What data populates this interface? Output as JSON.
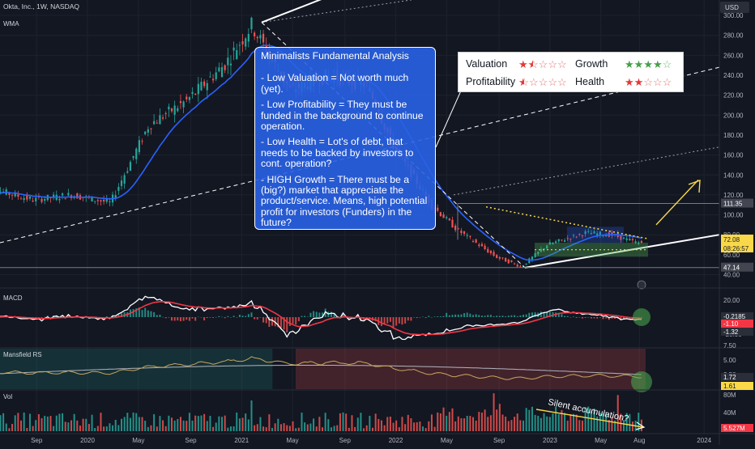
{
  "header": {
    "symbol_line": "Okta, Inc., 1W, NASDAQ",
    "indicator": "WMA",
    "currency": "USD"
  },
  "price_axis": {
    "ticks": [
      "300.00",
      "280.00",
      "260.00",
      "240.00",
      "220.00",
      "200.00",
      "180.00",
      "160.00",
      "140.00",
      "120.00",
      "100.00",
      "80.00",
      "60.00",
      "40.00"
    ],
    "labels": [
      {
        "text": "111.35",
        "color": "#434651"
      },
      {
        "text": "74.75",
        "color": "#2962ff"
      },
      {
        "text": "72.08",
        "color": "#f9d949"
      },
      {
        "text": "08:26:57",
        "color": "#f9d949"
      },
      {
        "text": "47.14",
        "color": "#434651"
      }
    ]
  },
  "time_axis": {
    "labels": [
      "Sep",
      "2020",
      "May",
      "Sep",
      "2021",
      "May",
      "Sep",
      "2022",
      "May",
      "Sep",
      "2023",
      "May",
      "Aug",
      "2024"
    ]
  },
  "analysis": {
    "title": "Minimalists Fundamental Analysis",
    "points": [
      "- Low Valuation = Not worth much (yet).",
      "- Low Profitability = They must be funded in the background to continue operation.",
      "- Low Health = Lot's of debt, that needs to be backed by investors to cont. operation?",
      "- HIGH Growth = There must be a (big?)  market that appreciate the product/service. Means, high potential profit for investors (Funders) in the future?"
    ]
  },
  "ratings": [
    {
      "label": "Valuation",
      "stars": 1.5,
      "color": "red"
    },
    {
      "label": "Growth",
      "stars": 4,
      "color": "green"
    },
    {
      "label": "Profitability",
      "stars": 0.5,
      "color": "red"
    },
    {
      "label": "Health",
      "stars": 2,
      "color": "red"
    }
  ],
  "panes": {
    "macd": {
      "name": "MACD",
      "ticks": [
        "20.00",
        "-20.00"
      ],
      "labels": [
        "-0.2185",
        "-1.10",
        "-1.32"
      ]
    },
    "mansfield": {
      "name": "Mansfield RS",
      "ticks": [
        "7.50",
        "5.00",
        "2.50"
      ],
      "labels": [
        "1.72",
        "1.61"
      ]
    },
    "vol": {
      "name": "Vol",
      "ticks": [
        "80M",
        "40M"
      ],
      "labels": [
        "5.527M"
      ]
    }
  },
  "annotations": {
    "volume_note": "Silent accumulation?"
  },
  "colors": {
    "up": "#26a69a",
    "down": "#ef5350",
    "wma": "#2962ff",
    "macd": "#ffffff",
    "signal": "#f23645",
    "rs": "#c8a75a",
    "arrow": "#f9d949"
  },
  "chart_data": {
    "type": "candlestick",
    "title": "Okta, Inc., 1W, NASDAQ",
    "ylim": [
      30,
      310
    ],
    "x_range": [
      "2019-06",
      "2024-04"
    ],
    "approx_close": [
      [
        "2019-06",
        125
      ],
      [
        "2019-09",
        115
      ],
      [
        "2019-12",
        120
      ],
      [
        "2020-03",
        112
      ],
      [
        "2020-06",
        190
      ],
      [
        "2020-09",
        215
      ],
      [
        "2020-12",
        252
      ],
      [
        "2021-02",
        290
      ],
      [
        "2021-05",
        225
      ],
      [
        "2021-08",
        240
      ],
      [
        "2021-11",
        230
      ],
      [
        "2022-01",
        170
      ],
      [
        "2022-04",
        110
      ],
      [
        "2022-06",
        85
      ],
      [
        "2022-09",
        58
      ],
      [
        "2022-11",
        48
      ],
      [
        "2023-01",
        70
      ],
      [
        "2023-04",
        82
      ],
      [
        "2023-06",
        80
      ],
      [
        "2023-08",
        72.08
      ]
    ],
    "levels": [
      111.35,
      74.75,
      72.08,
      47.14
    ]
  }
}
